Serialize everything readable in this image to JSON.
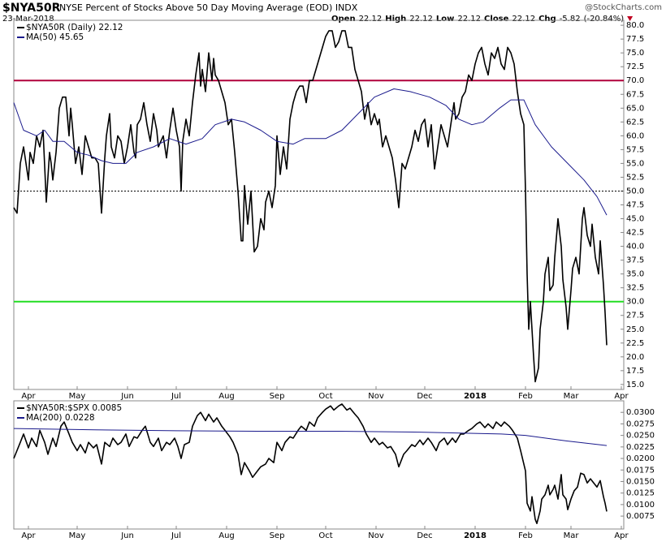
{
  "header": {
    "symbol": "$NYA50R",
    "description": "NYSE Percent of Stocks Above 50 Day Moving Average (EOD) INDX",
    "date": "23-Mar-2018",
    "source": "@StockCharts.com",
    "quote": [
      {
        "label": "Open",
        "value": 22.12
      },
      {
        "label": "High",
        "value": 22.12
      },
      {
        "label": "Low",
        "value": 22.12
      },
      {
        "label": "Close",
        "value": 22.12
      },
      {
        "label": "Chg",
        "value": -5.82,
        "pct": "(-20.84%)"
      }
    ]
  },
  "chart_data": [
    {
      "type": "line",
      "xlim": [
        0,
        375.5
      ],
      "ylim": [
        14.1,
        80.9
      ],
      "xticks": [
        {
          "value": 9,
          "label": "Apr"
        },
        {
          "value": 39,
          "label": "May"
        },
        {
          "value": 70,
          "label": "Jun"
        },
        {
          "value": 100,
          "label": "Jul"
        },
        {
          "value": 131,
          "label": "Aug"
        },
        {
          "value": 162,
          "label": "Sep"
        },
        {
          "value": 192,
          "label": "Oct"
        },
        {
          "value": 223,
          "label": "Nov"
        },
        {
          "value": 253,
          "label": "Dec"
        },
        {
          "value": 284,
          "label": "2018"
        },
        {
          "value": 315,
          "label": "Feb"
        },
        {
          "value": 343,
          "label": "Mar"
        },
        {
          "value": 374,
          "label": "Apr"
        }
      ],
      "yticks": [
        {
          "value": 15,
          "label": "15.0"
        },
        17.5,
        {
          "value": 20,
          "label": "20.0"
        },
        22.5,
        {
          "value": 25,
          "label": "25.0"
        },
        27.5,
        {
          "value": 30,
          "label": "30.0"
        },
        32.5,
        {
          "value": 35,
          "label": "35.0"
        },
        37.5,
        {
          "value": 40,
          "label": "40.0"
        },
        42.5,
        {
          "value": 45,
          "label": "45.0"
        },
        47.5,
        {
          "value": 50,
          "label": "50.0"
        },
        52.5,
        {
          "value": 55,
          "label": "55.0"
        },
        57.5,
        {
          "value": 60,
          "label": "60.0"
        },
        62.5,
        {
          "value": 65,
          "label": "65.0"
        },
        67.5,
        {
          "value": 70,
          "label": "70.0"
        },
        72.5,
        {
          "value": 75,
          "label": "75.0"
        },
        77.5,
        {
          "value": 80,
          "label": "80.0"
        }
      ],
      "hlines": [
        {
          "value": 70,
          "color": "#b0003a",
          "style": "solid"
        },
        {
          "value": 50,
          "color": "#000000",
          "style": "dotted"
        },
        {
          "value": 30,
          "color": "#22dd22",
          "style": "solid"
        }
      ],
      "series": [
        {
          "name": "$NYA50R (Daily) 22.12",
          "color": "#000000",
          "x": [
            0,
            2,
            4,
            6,
            9,
            10,
            12,
            14,
            16,
            18,
            20,
            22,
            23,
            24,
            26,
            28,
            30,
            32,
            34,
            35,
            36,
            38,
            40,
            42,
            44,
            46,
            48,
            50,
            52,
            54,
            56,
            57,
            59,
            60,
            62,
            64,
            66,
            68,
            70,
            72,
            74,
            75,
            76,
            78,
            80,
            82,
            84,
            86,
            88,
            89,
            92,
            94,
            96,
            98,
            100,
            102,
            103,
            104,
            106,
            108,
            110,
            112,
            114,
            115,
            116,
            118,
            120,
            122,
            123,
            124,
            126,
            128,
            130,
            132,
            134,
            136,
            138,
            140,
            141,
            142,
            144,
            146,
            148,
            150,
            152,
            154,
            155,
            157,
            159,
            161,
            162,
            164,
            166,
            168,
            170,
            172,
            174,
            176,
            178,
            180,
            182,
            184,
            186,
            188,
            190,
            192,
            194,
            196,
            198,
            200,
            202,
            204,
            206,
            208,
            210,
            212,
            214,
            216,
            218,
            220,
            222,
            224,
            225,
            227,
            229,
            231,
            233,
            235,
            237,
            239,
            241,
            243,
            245,
            247,
            249,
            251,
            253,
            255,
            257,
            259,
            261,
            263,
            265,
            267,
            269,
            271,
            272,
            274,
            276,
            278,
            280,
            282,
            284,
            286,
            288,
            290,
            292,
            294,
            296,
            298,
            300,
            302,
            304,
            306,
            308,
            310,
            312,
            314,
            315,
            316,
            317,
            318,
            320,
            321,
            323,
            324,
            326,
            327,
            329,
            330,
            332,
            333,
            335,
            337,
            338,
            340,
            341,
            343,
            344,
            346,
            348,
            350,
            351,
            353,
            355,
            356,
            358,
            360,
            361,
            363,
            364,
            365
          ],
          "values": [
            47,
            46,
            55,
            58,
            52,
            57,
            55,
            60,
            58,
            61,
            48,
            57,
            55,
            52,
            57,
            65,
            67,
            67,
            60,
            65,
            62,
            55,
            58,
            53,
            60,
            58,
            56,
            56,
            55,
            46,
            56,
            60,
            64,
            58,
            56,
            60,
            59,
            55,
            58,
            62,
            57,
            56,
            62,
            63,
            66,
            62,
            59,
            64,
            61,
            58,
            60,
            56,
            61,
            65,
            61,
            58,
            50,
            59,
            63,
            60,
            66,
            71,
            75,
            69,
            72,
            68,
            75,
            70,
            74,
            71,
            70,
            68,
            66,
            62,
            63,
            57,
            50,
            41,
            41,
            51,
            44,
            50,
            39,
            40,
            45,
            43,
            48,
            50,
            47,
            51,
            60,
            53,
            58,
            54,
            63,
            66,
            68,
            69,
            69,
            66,
            70,
            70,
            72,
            74,
            76,
            78,
            79,
            79,
            76,
            77,
            79,
            79,
            76,
            76,
            72,
            70,
            68,
            63,
            66,
            62,
            64,
            62,
            63,
            58,
            60,
            58,
            56,
            52,
            47,
            55,
            54,
            56,
            58,
            61,
            59,
            62,
            63,
            58,
            62,
            54,
            58,
            62,
            60,
            58,
            62,
            66,
            63,
            64,
            67,
            68,
            71,
            70,
            73,
            75,
            76,
            73,
            71,
            75,
            74,
            76,
            73,
            72,
            76,
            75,
            73,
            68,
            64,
            62,
            50,
            35,
            25,
            30,
            20,
            15.5,
            18,
            25,
            30,
            35,
            38,
            32,
            33,
            38,
            45,
            40,
            34,
            29,
            25,
            32,
            36,
            38,
            35,
            45,
            47,
            42,
            40,
            44,
            38,
            35,
            41,
            33,
            28,
            22.12
          ]
        },
        {
          "name": "MA(50) 45.65",
          "color": "#1a1a8c",
          "x": [
            0,
            6,
            14,
            19,
            24,
            31,
            39,
            46,
            54,
            61,
            69,
            76,
            86,
            96,
            106,
            116,
            124,
            134,
            142,
            152,
            162,
            172,
            179,
            192,
            202,
            212,
            222,
            234,
            244,
            256,
            266,
            274,
            282,
            289,
            299,
            306,
            314,
            321,
            331,
            341,
            351,
            359,
            365
          ],
          "values": [
            66,
            61,
            60,
            61,
            59,
            59,
            57,
            56.5,
            55.5,
            55,
            55,
            57,
            58,
            59.5,
            58.5,
            59.5,
            62,
            63,
            62.5,
            61,
            59,
            58.5,
            59.5,
            59.5,
            61,
            64,
            67,
            68.5,
            68,
            67,
            65.5,
            63,
            62,
            62.5,
            65,
            66.5,
            66.5,
            62,
            58,
            55,
            52,
            49,
            45.65
          ]
        }
      ]
    },
    {
      "type": "line",
      "xlim": [
        0,
        375.5
      ],
      "ylim": [
        0.0047,
        0.0325
      ],
      "yticks": [
        0.0075,
        {
          "value": 0.01,
          "label": "0.0100"
        },
        0.0125,
        {
          "value": 0.015,
          "label": "0.0150"
        },
        0.0175,
        {
          "value": 0.02,
          "label": "0.0200"
        },
        0.0225,
        {
          "value": 0.025,
          "label": "0.0250"
        },
        0.0275,
        {
          "value": 0.03,
          "label": "0.0300"
        }
      ],
      "series": [
        {
          "name": "$NYA50R:$SPX 0.0085",
          "color": "#000000",
          "x": [
            0,
            4,
            6,
            9,
            11,
            14,
            16,
            19,
            21,
            24,
            26,
            29,
            31,
            34,
            36,
            39,
            41,
            44,
            46,
            49,
            51,
            54,
            56,
            59,
            61,
            64,
            66,
            69,
            71,
            74,
            76,
            79,
            81,
            84,
            86,
            89,
            91,
            94,
            96,
            99,
            101,
            103,
            105,
            108,
            110,
            113,
            115,
            118,
            120,
            123,
            125,
            128,
            130,
            133,
            135,
            138,
            140,
            142,
            145,
            147,
            150,
            152,
            155,
            157,
            160,
            162,
            165,
            167,
            170,
            172,
            175,
            177,
            180,
            182,
            185,
            187,
            190,
            192,
            195,
            197,
            200,
            202,
            205,
            207,
            210,
            212,
            215,
            217,
            220,
            222,
            225,
            227,
            230,
            232,
            235,
            237,
            240,
            242,
            245,
            247,
            250,
            252,
            255,
            257,
            260,
            262,
            265,
            267,
            270,
            272,
            275,
            277,
            280,
            282,
            285,
            287,
            290,
            292,
            295,
            297,
            300,
            302,
            305,
            307,
            310,
            312,
            315,
            316,
            318,
            319,
            321,
            322,
            324,
            325,
            327,
            329,
            330,
            332,
            333,
            335,
            337,
            338,
            340,
            341,
            343,
            345,
            347,
            349,
            351,
            353,
            355,
            357,
            359,
            361,
            363,
            364,
            365
          ],
          "values": [
            0.02,
            0.0235,
            0.0253,
            0.0223,
            0.0244,
            0.0226,
            0.0261,
            0.0235,
            0.0209,
            0.0244,
            0.0226,
            0.027,
            0.0279,
            0.0253,
            0.0235,
            0.0217,
            0.023,
            0.0212,
            0.0235,
            0.0223,
            0.023,
            0.0188,
            0.0235,
            0.0226,
            0.0244,
            0.023,
            0.0235,
            0.0253,
            0.0226,
            0.0247,
            0.0244,
            0.0261,
            0.027,
            0.0235,
            0.0226,
            0.0244,
            0.0217,
            0.0235,
            0.023,
            0.0244,
            0.0226,
            0.02,
            0.023,
            0.0235,
            0.027,
            0.0293,
            0.03,
            0.0282,
            0.0296,
            0.0279,
            0.0288,
            0.027,
            0.0261,
            0.0247,
            0.0235,
            0.0209,
            0.0165,
            0.0191,
            0.0173,
            0.0159,
            0.0173,
            0.0182,
            0.0188,
            0.02,
            0.0191,
            0.0235,
            0.0217,
            0.0235,
            0.0247,
            0.0244,
            0.0261,
            0.027,
            0.0261,
            0.0279,
            0.027,
            0.0288,
            0.03,
            0.0307,
            0.0314,
            0.0305,
            0.0314,
            0.0318,
            0.0305,
            0.0309,
            0.0296,
            0.0288,
            0.027,
            0.0253,
            0.0235,
            0.0244,
            0.023,
            0.0235,
            0.0223,
            0.0226,
            0.0209,
            0.0182,
            0.0209,
            0.0217,
            0.023,
            0.0226,
            0.024,
            0.023,
            0.0244,
            0.0235,
            0.0217,
            0.0235,
            0.0244,
            0.023,
            0.0244,
            0.0235,
            0.0253,
            0.0253,
            0.0261,
            0.0265,
            0.0275,
            0.0279,
            0.0267,
            0.0275,
            0.0265,
            0.0279,
            0.027,
            0.0279,
            0.027,
            0.0261,
            0.0244,
            0.0217,
            0.0173,
            0.0103,
            0.0086,
            0.0117,
            0.0068,
            0.0059,
            0.0086,
            0.0112,
            0.0121,
            0.0142,
            0.0121,
            0.0133,
            0.0142,
            0.0112,
            0.0165,
            0.0121,
            0.0112,
            0.0089,
            0.0112,
            0.013,
            0.0138,
            0.0168,
            0.0165,
            0.0147,
            0.0156,
            0.0147,
            0.0138,
            0.0152,
            0.0117,
            0.0103,
            0.0085
          ]
        },
        {
          "name": "MA(200) 0.0228",
          "color": "#1a1a8c",
          "x": [
            0,
            50,
            100,
            150,
            200,
            250,
            300,
            315,
            340,
            365
          ],
          "values": [
            0.0265,
            0.0262,
            0.026,
            0.0259,
            0.0259,
            0.0257,
            0.0253,
            0.025,
            0.0238,
            0.0228
          ]
        }
      ]
    }
  ]
}
